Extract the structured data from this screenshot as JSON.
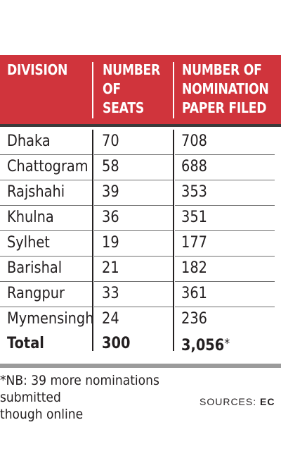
{
  "table": {
    "headers": [
      "DIVISION",
      "NUMBER\nOF\nSEATS",
      "NUMBER OF\nNOMINATION\nPAPER FILED"
    ],
    "rows": [
      {
        "division": "Dhaka",
        "seats": "70",
        "papers": "708"
      },
      {
        "division": "Chattogram",
        "seats": "58",
        "papers": "688"
      },
      {
        "division": "Rajshahi",
        "seats": "39",
        "papers": "353"
      },
      {
        "division": "Khulna",
        "seats": "36",
        "papers": "351"
      },
      {
        "division": "Sylhet",
        "seats": "19",
        "papers": "177"
      },
      {
        "division": "Barishal",
        "seats": "21",
        "papers": "182"
      },
      {
        "division": "Rangpur",
        "seats": "33",
        "papers": "361"
      },
      {
        "division": "Mymensingh",
        "seats": "24",
        "papers": "236"
      }
    ],
    "total": {
      "label": "Total",
      "seats": "300",
      "papers": "3,056",
      "mark": "*"
    }
  },
  "footnote": "*NB: 39 more nominations submitted\nthough online",
  "sources": {
    "label": "SOURCES: ",
    "name": "EC"
  },
  "colors": {
    "header_bg": "#d0343c",
    "header_text": "#ffffff",
    "text": "#231f20"
  }
}
